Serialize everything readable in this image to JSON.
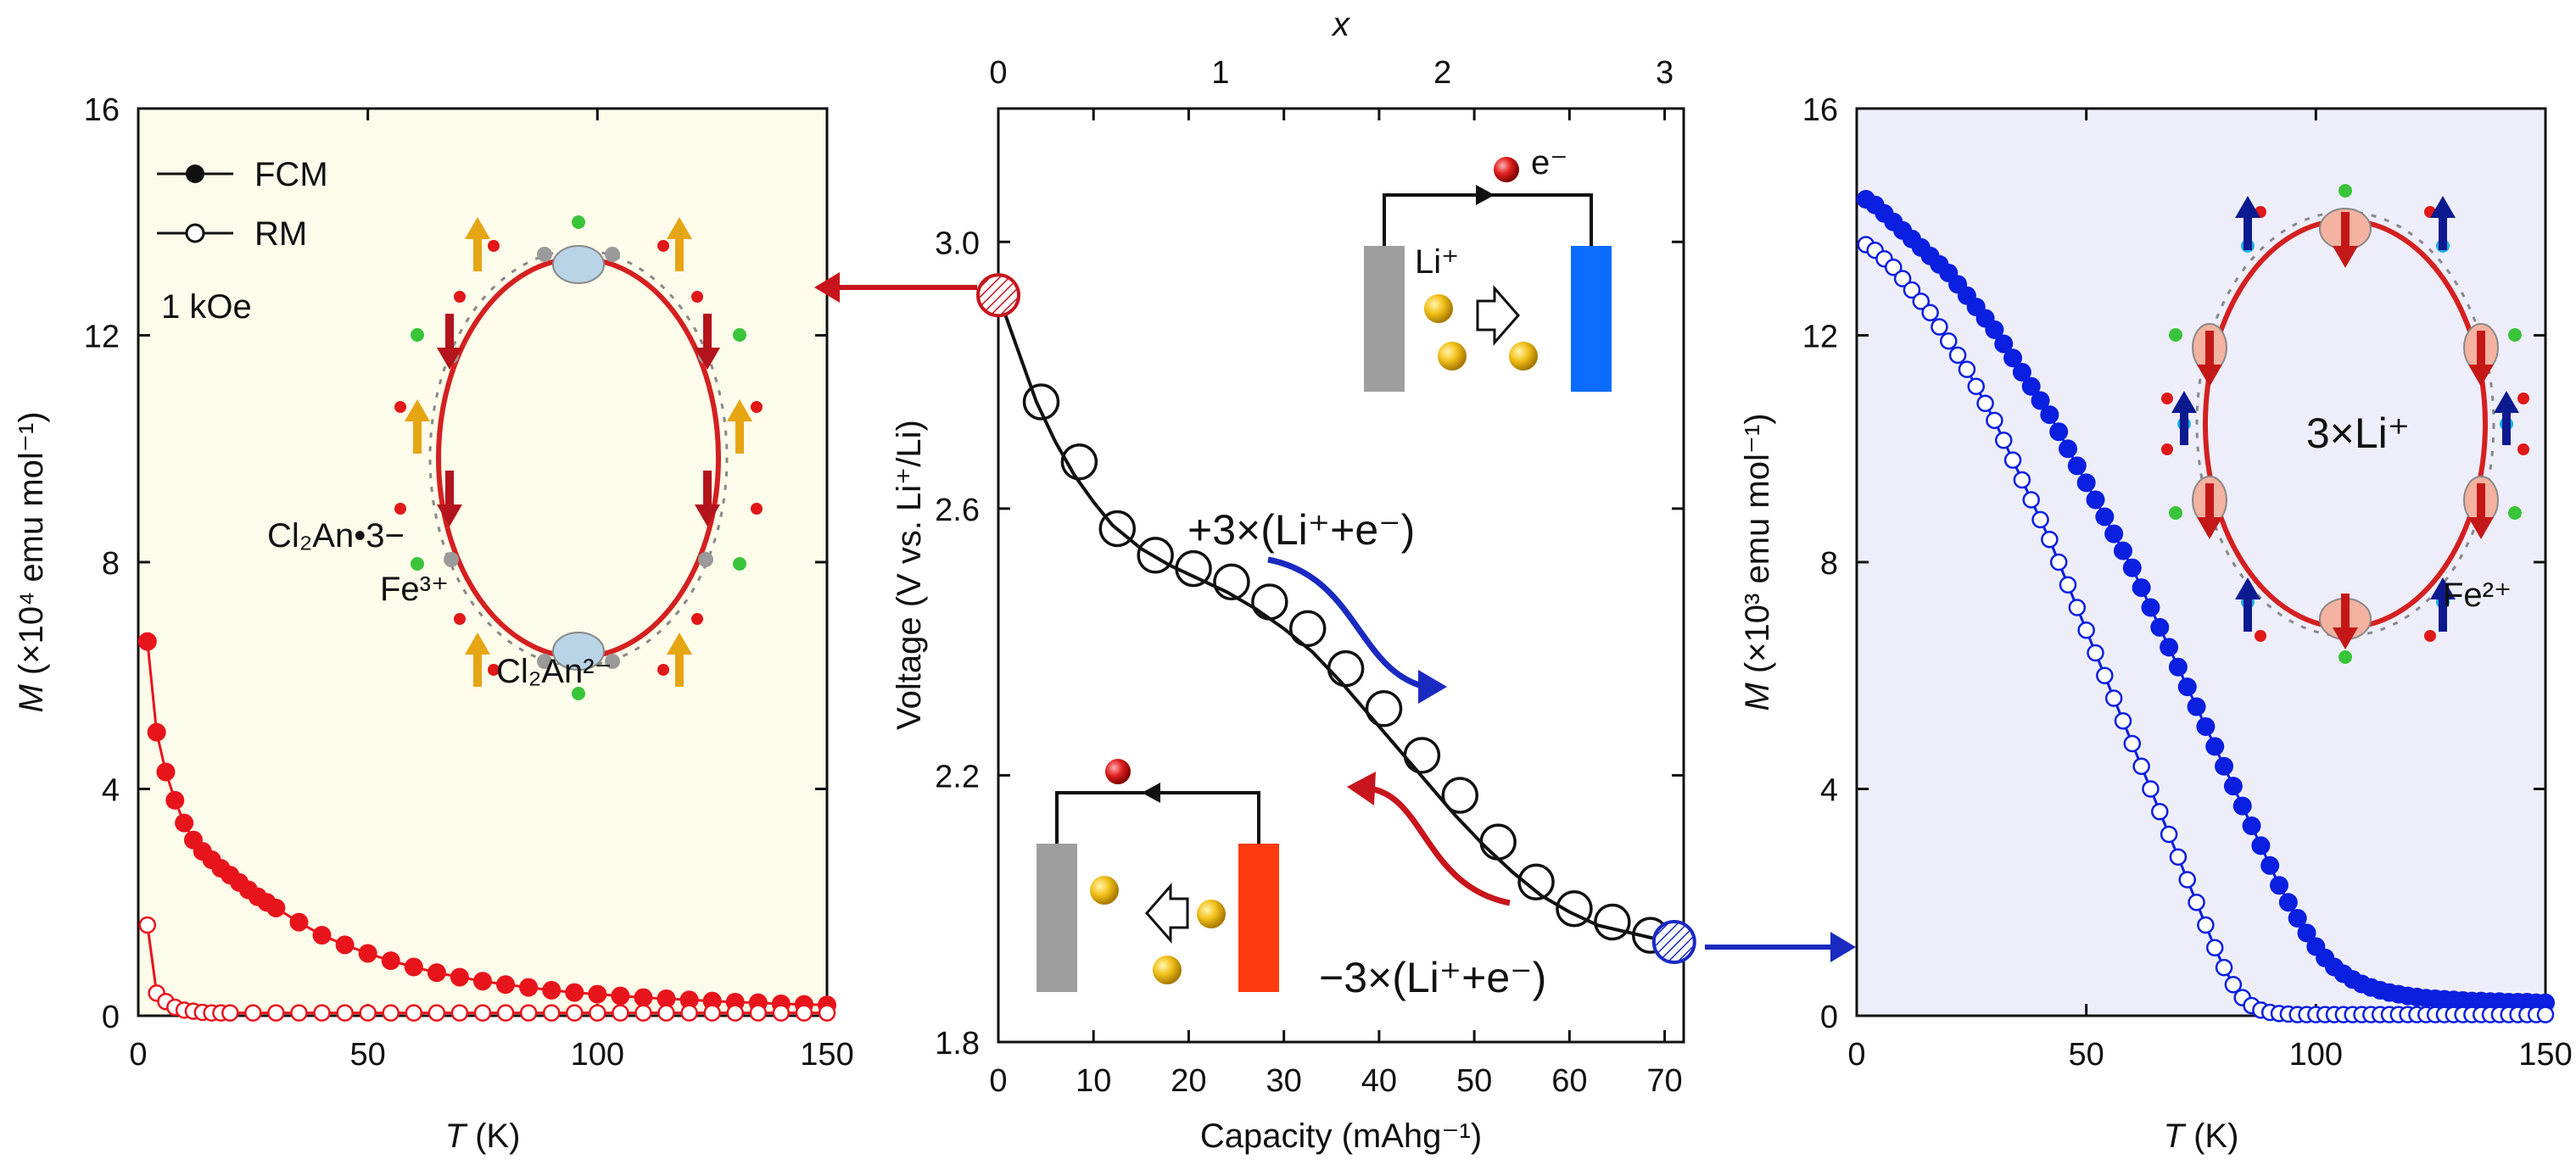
{
  "chart_data": [
    {
      "type": "scatter",
      "panel": "left",
      "xlabel_var": "T",
      "xlabel_unit": " (K)",
      "ylabel_var": "M",
      "ylabel_unit": " (×10⁴ emu mol⁻¹)",
      "xlim": [
        0,
        150
      ],
      "ylim": [
        0,
        16
      ],
      "xticks": [
        0,
        50,
        100,
        150
      ],
      "yticks": [
        0,
        4,
        8,
        12,
        16
      ],
      "background": "#fdfbea",
      "legend": {
        "position": "top-left",
        "entries": [
          "FCM",
          "RM"
        ]
      },
      "annotation_field": "1 kOe",
      "structure_labels": {
        "ligand_radical": "Cl₂An•3−",
        "metal": "Fe³⁺",
        "ligand": "Cl₂An²⁻"
      },
      "series": [
        {
          "name": "FCM",
          "color": "#e8141c",
          "marker": "filled",
          "x": [
            2,
            4,
            6,
            8,
            10,
            12,
            14,
            16,
            18,
            20,
            22,
            24,
            26,
            28,
            30,
            35,
            40,
            45,
            50,
            55,
            60,
            65,
            70,
            75,
            80,
            85,
            90,
            95,
            100,
            105,
            110,
            115,
            120,
            125,
            130,
            135,
            140,
            145,
            150
          ],
          "y": [
            6.6,
            5.0,
            4.3,
            3.8,
            3.4,
            3.1,
            2.9,
            2.75,
            2.6,
            2.48,
            2.35,
            2.22,
            2.1,
            2.0,
            1.9,
            1.65,
            1.42,
            1.25,
            1.1,
            0.97,
            0.86,
            0.76,
            0.68,
            0.61,
            0.55,
            0.5,
            0.45,
            0.41,
            0.38,
            0.35,
            0.32,
            0.3,
            0.28,
            0.26,
            0.24,
            0.23,
            0.21,
            0.2,
            0.19
          ]
        },
        {
          "name": "RM",
          "color": "#e8141c",
          "marker": "open",
          "x": [
            2,
            4,
            6,
            8,
            10,
            12,
            14,
            16,
            18,
            20,
            25,
            30,
            35,
            40,
            45,
            50,
            55,
            60,
            65,
            70,
            75,
            80,
            85,
            90,
            95,
            100,
            105,
            110,
            115,
            120,
            125,
            130,
            135,
            140,
            145,
            150
          ],
          "y": [
            1.6,
            0.4,
            0.25,
            0.15,
            0.1,
            0.08,
            0.06,
            0.05,
            0.05,
            0.05,
            0.05,
            0.05,
            0.05,
            0.05,
            0.05,
            0.05,
            0.05,
            0.05,
            0.05,
            0.05,
            0.05,
            0.05,
            0.05,
            0.05,
            0.05,
            0.05,
            0.05,
            0.05,
            0.05,
            0.05,
            0.05,
            0.05,
            0.05,
            0.05,
            0.05,
            0.05
          ]
        }
      ]
    },
    {
      "type": "line",
      "panel": "middle",
      "xlabel": "Capacity (mAhg⁻¹)",
      "ylabel": "Voltage (V vs. Li⁺/Li)",
      "top_xlabel": "x",
      "xlim": [
        0,
        72
      ],
      "ylim": [
        1.8,
        3.2
      ],
      "xticks": [
        0,
        10,
        20,
        30,
        40,
        50,
        60,
        70
      ],
      "yticks": [
        1.8,
        2.2,
        2.6,
        3.0
      ],
      "top_xticks": [
        0,
        1,
        2,
        3
      ],
      "top_xlim": [
        0,
        3
      ],
      "annotations": {
        "discharge": "+3×(Li⁺+e⁻)",
        "charge": "−3×(Li⁺+e⁻)",
        "electron": "e⁻",
        "lithium": "Li⁺"
      },
      "curve": {
        "x": [
          0,
          2,
          4,
          6,
          8,
          10,
          12,
          15,
          18,
          21,
          24,
          27,
          30,
          33,
          36,
          39,
          42,
          45,
          48,
          51,
          54,
          57,
          60,
          63,
          66,
          69,
          71
        ],
        "y": [
          2.92,
          2.84,
          2.76,
          2.7,
          2.65,
          2.61,
          2.575,
          2.54,
          2.515,
          2.495,
          2.475,
          2.45,
          2.42,
          2.385,
          2.34,
          2.29,
          2.24,
          2.19,
          2.14,
          2.095,
          2.055,
          2.02,
          1.995,
          1.975,
          1.965,
          1.955,
          1.95
        ]
      },
      "markers": {
        "x": [
          4.5,
          8.5,
          12.5,
          16.5,
          20.5,
          24.5,
          28.5,
          32.5,
          36.5,
          40.5,
          44.5,
          48.5,
          52.5,
          56.5,
          60.5,
          64.5,
          68.5
        ],
        "y": [
          2.76,
          2.67,
          2.57,
          2.53,
          2.51,
          2.49,
          2.46,
          2.42,
          2.36,
          2.3,
          2.23,
          2.17,
          2.1,
          2.04,
          2.0,
          1.98,
          1.96
        ]
      },
      "start_point": {
        "x": 0,
        "y": 2.92
      },
      "end_point": {
        "x": 71,
        "y": 1.95
      }
    },
    {
      "type": "scatter",
      "panel": "right",
      "xlabel_var": "T",
      "xlabel_unit": " (K)",
      "ylabel_var": "M",
      "ylabel_unit": " (×10³ emu mol⁻¹)",
      "xlim": [
        0,
        150
      ],
      "ylim": [
        0,
        16
      ],
      "xticks": [
        0,
        50,
        100,
        150
      ],
      "yticks": [
        0,
        4,
        8,
        12,
        16
      ],
      "background": "#eeeefa",
      "inset_label": "3×Li⁺",
      "metal_label": "Fe²⁺",
      "series": [
        {
          "name": "FCM",
          "color": "#0a1fe0",
          "marker": "filled",
          "x": [
            2,
            4,
            6,
            8,
            10,
            12,
            14,
            16,
            18,
            20,
            22,
            24,
            26,
            28,
            30,
            32,
            34,
            36,
            38,
            40,
            42,
            44,
            46,
            48,
            50,
            52,
            54,
            56,
            58,
            60,
            62,
            64,
            66,
            68,
            70,
            72,
            74,
            76,
            78,
            80,
            82,
            84,
            86,
            88,
            90,
            92,
            94,
            96,
            98,
            100,
            102,
            104,
            106,
            108,
            110,
            112,
            114,
            116,
            118,
            120,
            122,
            124,
            126,
            128,
            130,
            132,
            134,
            136,
            138,
            140,
            142,
            144,
            146,
            148,
            150
          ],
          "y": [
            14.4,
            14.3,
            14.15,
            14.0,
            13.85,
            13.7,
            13.55,
            13.4,
            13.25,
            13.1,
            12.9,
            12.7,
            12.5,
            12.3,
            12.1,
            11.85,
            11.6,
            11.35,
            11.1,
            10.85,
            10.6,
            10.3,
            10.0,
            9.7,
            9.4,
            9.1,
            8.8,
            8.5,
            8.2,
            7.9,
            7.55,
            7.2,
            6.85,
            6.5,
            6.15,
            5.8,
            5.45,
            5.1,
            4.75,
            4.4,
            4.05,
            3.7,
            3.35,
            3.0,
            2.65,
            2.3,
            2.0,
            1.72,
            1.46,
            1.22,
            1.02,
            0.86,
            0.74,
            0.64,
            0.56,
            0.5,
            0.45,
            0.41,
            0.38,
            0.35,
            0.33,
            0.31,
            0.3,
            0.29,
            0.28,
            0.27,
            0.26,
            0.26,
            0.25,
            0.25,
            0.24,
            0.24,
            0.24,
            0.23,
            0.23
          ]
        },
        {
          "name": "RM",
          "color": "#0a1fe0",
          "marker": "open",
          "x": [
            2,
            4,
            6,
            8,
            10,
            12,
            14,
            16,
            18,
            20,
            22,
            24,
            26,
            28,
            30,
            32,
            34,
            36,
            38,
            40,
            42,
            44,
            46,
            48,
            50,
            52,
            54,
            56,
            58,
            60,
            62,
            64,
            66,
            68,
            70,
            72,
            74,
            76,
            78,
            80,
            82,
            84,
            86,
            88,
            90,
            92,
            94,
            96,
            98,
            100,
            102,
            104,
            106,
            108,
            110,
            112,
            114,
            116,
            118,
            120,
            122,
            124,
            126,
            128,
            130,
            132,
            134,
            136,
            138,
            140,
            142,
            144,
            146,
            148,
            150
          ],
          "y": [
            13.6,
            13.5,
            13.35,
            13.2,
            13.0,
            12.8,
            12.6,
            12.4,
            12.15,
            11.9,
            11.65,
            11.4,
            11.1,
            10.8,
            10.5,
            10.15,
            9.8,
            9.45,
            9.1,
            8.75,
            8.4,
            8.0,
            7.6,
            7.2,
            6.8,
            6.4,
            6.0,
            5.6,
            5.2,
            4.8,
            4.4,
            4.0,
            3.6,
            3.2,
            2.8,
            2.4,
            2.0,
            1.6,
            1.2,
            0.85,
            0.55,
            0.32,
            0.18,
            0.1,
            0.06,
            0.04,
            0.03,
            0.02,
            0.02,
            0.02,
            0.02,
            0.02,
            0.02,
            0.02,
            0.02,
            0.02,
            0.02,
            0.02,
            0.02,
            0.02,
            0.02,
            0.02,
            0.02,
            0.02,
            0.02,
            0.02,
            0.02,
            0.02,
            0.02,
            0.02,
            0.02,
            0.02,
            0.02,
            0.02,
            0.02
          ]
        }
      ]
    }
  ]
}
